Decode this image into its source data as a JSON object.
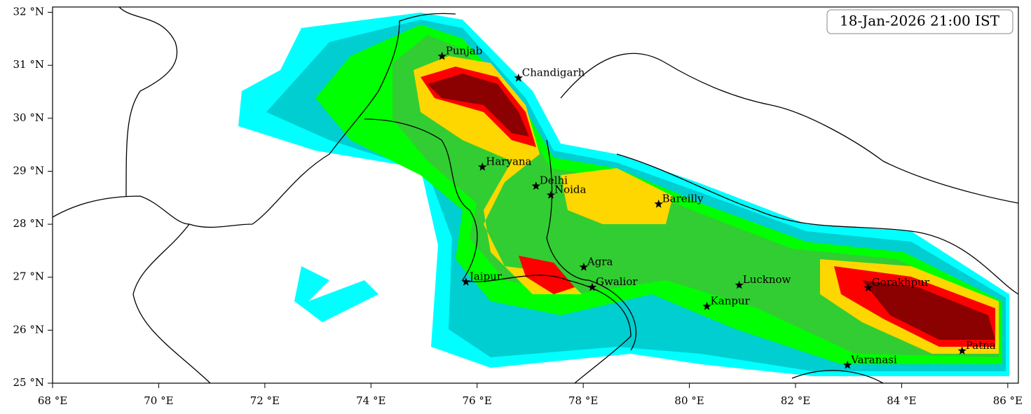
{
  "chart_data": {
    "type": "map",
    "timestamp": "18-Jan-2026 21:00 IST",
    "xlim": [
      68,
      86.2
    ],
    "ylim": [
      25,
      32.1
    ],
    "xticks": [
      {
        "value": 68,
        "label": "68 °E"
      },
      {
        "value": 70,
        "label": "70 °E"
      },
      {
        "value": 72,
        "label": "72 °E"
      },
      {
        "value": 74,
        "label": "74 °E"
      },
      {
        "value": 76,
        "label": "76 °E"
      },
      {
        "value": 78,
        "label": "78 °E"
      },
      {
        "value": 80,
        "label": "80 °E"
      },
      {
        "value": 82,
        "label": "82 °E"
      },
      {
        "value": 84,
        "label": "84 °E"
      },
      {
        "value": 86,
        "label": "86 °E"
      }
    ],
    "yticks": [
      {
        "value": 25,
        "label": "25 °N"
      },
      {
        "value": 26,
        "label": "26 °N"
      },
      {
        "value": 27,
        "label": "27 °N"
      },
      {
        "value": 28,
        "label": "28 °N"
      },
      {
        "value": 29,
        "label": "29 °N"
      },
      {
        "value": 30,
        "label": "30 °N"
      },
      {
        "value": 31,
        "label": "31 °N"
      },
      {
        "value": 32,
        "label": "32 °N"
      }
    ],
    "cities": [
      {
        "name": "Punjab",
        "lon": 75.34,
        "lat": 31.17
      },
      {
        "name": "Chandigarh",
        "lon": 76.78,
        "lat": 30.76
      },
      {
        "name": "Haryana",
        "lon": 76.1,
        "lat": 29.08
      },
      {
        "name": "Delhi",
        "lon": 77.11,
        "lat": 28.72
      },
      {
        "name": "Noida",
        "lon": 77.39,
        "lat": 28.55
      },
      {
        "name": "Bareilly",
        "lon": 79.42,
        "lat": 28.38
      },
      {
        "name": "Agra",
        "lon": 78.01,
        "lat": 27.19
      },
      {
        "name": "Jaipur",
        "lon": 75.79,
        "lat": 26.91
      },
      {
        "name": "Gwalior",
        "lon": 78.17,
        "lat": 26.81
      },
      {
        "name": "Lucknow",
        "lon": 80.94,
        "lat": 26.85
      },
      {
        "name": "Kanpur",
        "lon": 80.33,
        "lat": 26.45
      },
      {
        "name": "Gorakhpur",
        "lon": 83.37,
        "lat": 26.8
      },
      {
        "name": "Varanasi",
        "lon": 82.98,
        "lat": 25.34
      },
      {
        "name": "Patna",
        "lon": 85.14,
        "lat": 25.61
      }
    ]
  }
}
